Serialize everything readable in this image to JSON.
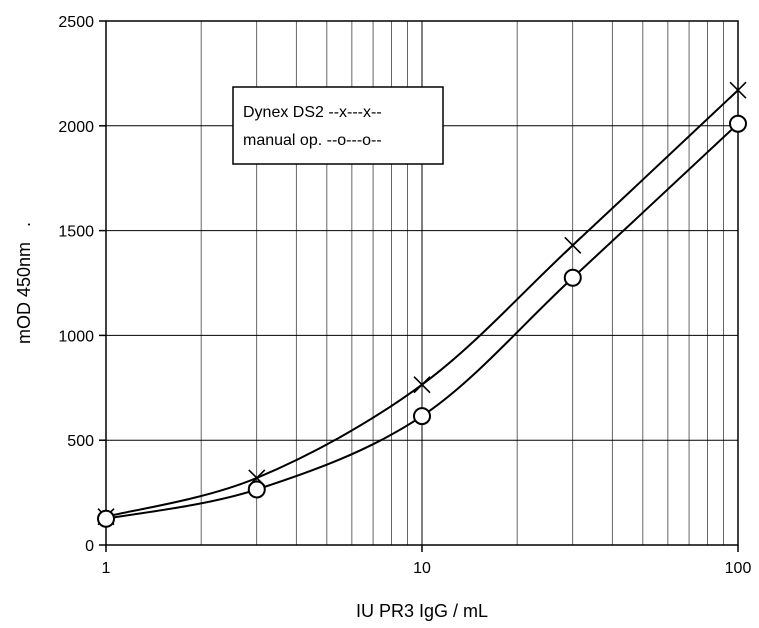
{
  "chart_data": {
    "type": "line",
    "xlabel": "IU  PR3 IgG / mL",
    "ylabel": "mOD 450nm   .",
    "x_scale": "log",
    "xlim": [
      1,
      100
    ],
    "ylim": [
      0,
      2500
    ],
    "x_ticks": [
      "1",
      "10",
      "100"
    ],
    "y_ticks": [
      "0",
      "500",
      "1000",
      "1500",
      "2000",
      "2500"
    ],
    "grid": true,
    "legend_position": "upper-left inside plot",
    "legend": [
      "Dynex DS2  --x---x--",
      "manual op. --o---o--"
    ],
    "series": [
      {
        "marker": "x",
        "x": [
          1,
          3,
          10,
          30,
          100
        ],
        "y": [
          135,
          320,
          765,
          1430,
          2170
        ]
      },
      {
        "marker": "o",
        "x": [
          1,
          3,
          10,
          30,
          100
        ],
        "y": [
          125,
          265,
          615,
          1275,
          2010
        ]
      }
    ]
  }
}
